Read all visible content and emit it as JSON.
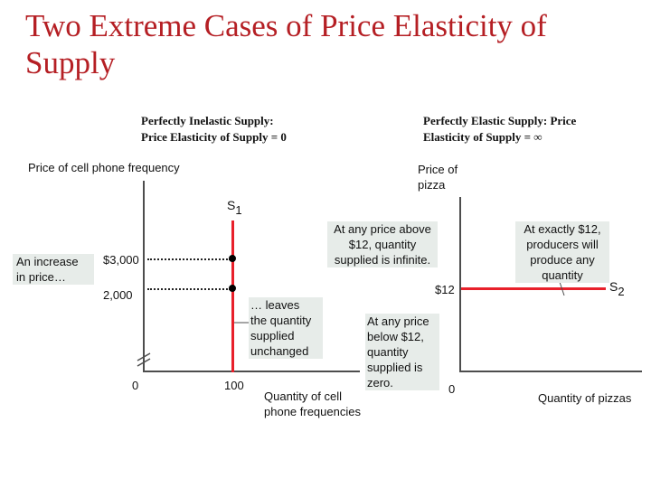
{
  "slide": {
    "title": "Two Extreme Cases of Price Elasticity of Supply"
  },
  "left_panel": {
    "heading_line1": "Perfectly Inelastic Supply:",
    "heading_line2": "Price Elasticity of Supply = 0",
    "y_axis_label": "Price of cell phone frequency",
    "x_axis_label_line1": "Quantity of cell",
    "x_axis_label_line2": "phone frequencies",
    "curve_label_main": "S",
    "curve_label_sub": "1",
    "origin_label": "0",
    "quantity_tick": "100",
    "price_high": "$3,000",
    "price_low": "2,000",
    "note_increase_line1": "An increase",
    "note_increase_line2": "in price…",
    "note_leaves_line1": "… leaves",
    "note_leaves_line2": "the quantity",
    "note_leaves_line3": "supplied",
    "note_leaves_line4": "unchanged"
  },
  "right_panel": {
    "heading_line1": "Perfectly Elastic Supply: Price",
    "heading_line2": "Elasticity of Supply = ∞",
    "y_axis_label_line1": "Price of",
    "y_axis_label_line2": "pizza",
    "x_axis_label": "Quantity of pizzas",
    "curve_label_main": "S",
    "curve_label_sub": "2",
    "origin_label": "0",
    "price_label": "$12",
    "note_above_line1": "At any price above",
    "note_above_line2": "$12, quantity",
    "note_above_line3": "supplied is infinite.",
    "note_below_line1": "At any price",
    "note_below_line2": "below $12,",
    "note_below_line3": "quantity",
    "note_below_line4": "supplied is",
    "note_below_line5": "zero.",
    "note_exact_line1": "At exactly $12,",
    "note_exact_line2": "producers will",
    "note_exact_line3": "produce any",
    "note_exact_line4": "quantity"
  },
  "colors": {
    "title": "#b51f24",
    "supply_curve": "#e8202a",
    "note_background": "#e7ece9",
    "axis": "#4d4d4d"
  }
}
